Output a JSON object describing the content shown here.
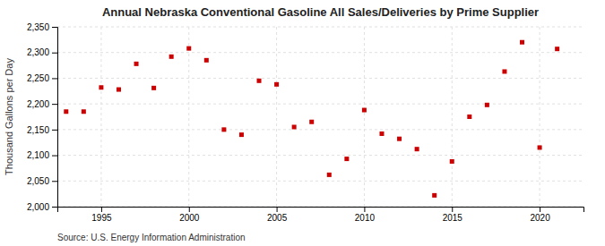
{
  "chart_data": {
    "type": "scatter",
    "title": "Annual Nebraska Conventional Gasoline All Sales/Deliveries by Prime Supplier",
    "y_label": "Thousand Gallons per Day",
    "annotations": [
      "Source: U.S. Energy Information Administration"
    ],
    "x": [
      1993,
      1994,
      1995,
      1996,
      1997,
      1998,
      1999,
      2000,
      2001,
      2002,
      2003,
      2004,
      2005,
      2006,
      2007,
      2008,
      2009,
      2010,
      2011,
      2012,
      2013,
      2014,
      2015,
      2016,
      2017,
      2018,
      2019,
      2020,
      2021
    ],
    "values": [
      2185,
      2185,
      2232,
      2228,
      2278,
      2231,
      2292,
      2308,
      2285,
      2150,
      2140,
      2245,
      2238,
      2155,
      2165,
      2062,
      2093,
      2188,
      2142,
      2132,
      2112,
      2022,
      2088,
      2175,
      2198,
      2263,
      2320,
      2115,
      2307
    ],
    "color": "#cc0000",
    "marker": "square",
    "xlim": [
      1992.5,
      2022.5
    ],
    "xticks": [
      1995,
      2000,
      2005,
      2010,
      2015,
      2020
    ],
    "ylim": [
      2000,
      2350
    ],
    "yticks": [
      {
        "value": 2000,
        "label": "2,000"
      },
      {
        "value": 2050,
        "label": "2,050"
      },
      {
        "value": 2100,
        "label": "2,100"
      },
      {
        "value": 2150,
        "label": "2,150"
      },
      {
        "value": 2200,
        "label": "2,200"
      },
      {
        "value": 2250,
        "label": "2,250"
      },
      {
        "value": 2300,
        "label": "2,300"
      },
      {
        "value": 2350,
        "label": "2,350"
      }
    ],
    "grid": true
  }
}
